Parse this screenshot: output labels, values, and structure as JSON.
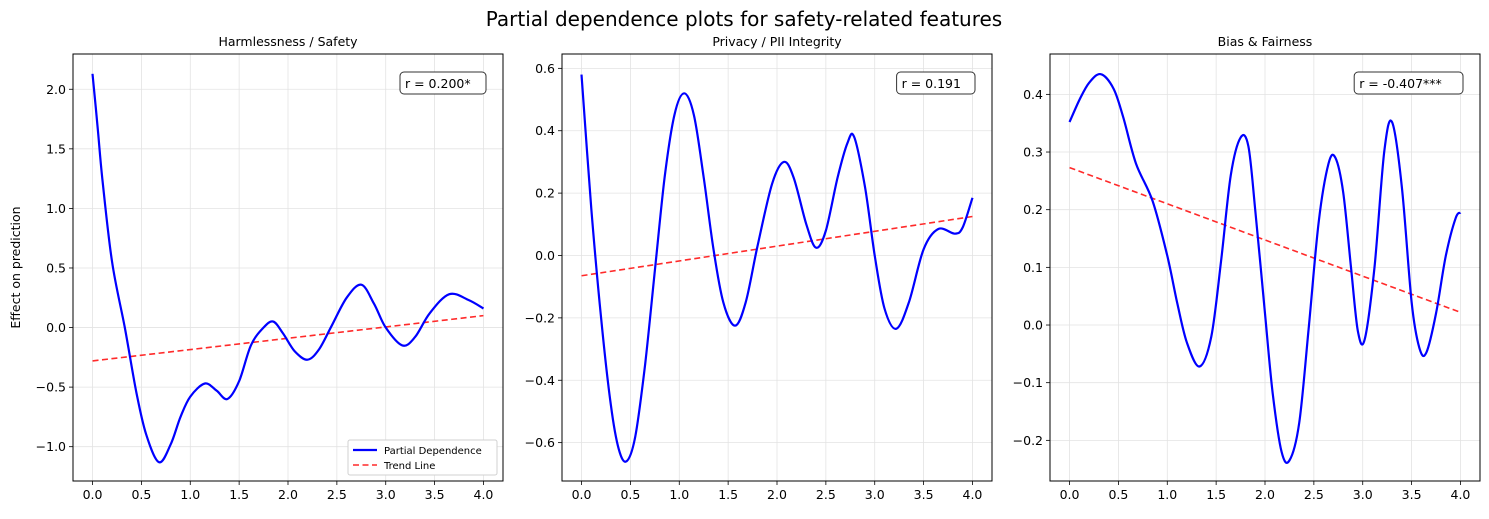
{
  "suptitle": "Partial dependence plots for safety-related features",
  "colors": {
    "pd": "#0000ff",
    "trend": "#ff2a2a",
    "grid": "#e3e3e3"
  },
  "legend": {
    "pd_label": "Partial Dependence",
    "trend_label": "Trend Line",
    "placement": "lower-right"
  },
  "chart_data": [
    {
      "type": "line",
      "title": "Harmlessness / Safety",
      "ylabel": "Effect on prediction",
      "xlabel": "",
      "annotation": "r = 0.200*",
      "xlim": [
        -0.2,
        4.2
      ],
      "ylim": [
        -1.288,
        2.296
      ],
      "xticks": [
        "0.0",
        "0.5",
        "1.0",
        "1.5",
        "2.0",
        "2.5",
        "3.0",
        "3.5",
        "4.0"
      ],
      "yticks": [
        "−1.0",
        "−0.5",
        "0.0",
        "0.5",
        "1.0",
        "1.5",
        "2.0"
      ],
      "ytick_values": [
        -1.0,
        -0.5,
        0,
        0.5,
        1.0,
        1.5,
        2.0
      ],
      "show_legend": true,
      "grid": true,
      "series": [
        {
          "name": "Partial Dependence",
          "x": [
            0,
            0.05,
            0.1,
            0.2,
            0.33,
            0.45,
            0.55,
            0.68,
            0.8,
            0.9,
            1.0,
            1.15,
            1.27,
            1.38,
            1.5,
            1.62,
            1.75,
            1.85,
            1.95,
            2.07,
            2.2,
            2.32,
            2.45,
            2.6,
            2.75,
            2.88,
            3.0,
            3.17,
            3.3,
            3.45,
            3.65,
            3.85,
            4.0
          ],
          "y": [
            2.13,
            1.7,
            1.25,
            0.55,
            0.0,
            -0.55,
            -0.9,
            -1.13,
            -0.98,
            -0.75,
            -0.58,
            -0.47,
            -0.53,
            -0.6,
            -0.45,
            -0.15,
            0.0,
            0.05,
            -0.05,
            -0.2,
            -0.27,
            -0.18,
            0.02,
            0.25,
            0.36,
            0.2,
            0.0,
            -0.15,
            -0.08,
            0.12,
            0.28,
            0.23,
            0.16
          ]
        },
        {
          "name": "Trend Line",
          "x": [
            0,
            4
          ],
          "y": [
            -0.28,
            0.1
          ]
        }
      ]
    },
    {
      "type": "line",
      "title": "Privacy / PII Integrity",
      "ylabel": "",
      "xlabel": "",
      "annotation": "r = 0.191",
      "xlim": [
        -0.2,
        4.2
      ],
      "ylim": [
        -0.723,
        0.646
      ],
      "xticks": [
        "0.0",
        "0.5",
        "1.0",
        "1.5",
        "2.0",
        "2.5",
        "3.0",
        "3.5",
        "4.0"
      ],
      "yticks": [
        "−0.6",
        "−0.4",
        "−0.2",
        "0.0",
        "0.2",
        "0.4",
        "0.6"
      ],
      "ytick_values": [
        -0.6,
        -0.4,
        -0.2,
        0,
        0.2,
        0.4,
        0.6
      ],
      "show_legend": false,
      "grid": true,
      "series": [
        {
          "name": "Partial Dependence",
          "x": [
            0,
            0.1,
            0.2,
            0.3,
            0.38,
            0.46,
            0.55,
            0.65,
            0.75,
            0.85,
            0.95,
            1.05,
            1.15,
            1.25,
            1.35,
            1.45,
            1.57,
            1.68,
            1.8,
            1.95,
            2.07,
            2.17,
            2.3,
            2.4,
            2.5,
            2.62,
            2.72,
            2.79,
            2.9,
            3.0,
            3.1,
            3.22,
            3.35,
            3.5,
            3.65,
            3.82,
            3.9,
            4.0
          ],
          "y": [
            0.58,
            0.15,
            -0.2,
            -0.48,
            -0.62,
            -0.66,
            -0.58,
            -0.35,
            -0.05,
            0.25,
            0.45,
            0.52,
            0.45,
            0.25,
            0.02,
            -0.15,
            -0.225,
            -0.15,
            0.03,
            0.23,
            0.3,
            0.25,
            0.1,
            0.025,
            0.08,
            0.25,
            0.36,
            0.38,
            0.22,
            0.0,
            -0.17,
            -0.235,
            -0.15,
            0.02,
            0.085,
            0.07,
            0.09,
            0.185
          ]
        },
        {
          "name": "Trend Line",
          "x": [
            0,
            4
          ],
          "y": [
            -0.065,
            0.125
          ]
        }
      ]
    },
    {
      "type": "line",
      "title": "Bias & Fairness",
      "ylabel": "",
      "xlabel": "",
      "annotation": "r = -0.407***",
      "xlim": [
        -0.2,
        4.2
      ],
      "ylim": [
        -0.2705,
        0.47
      ],
      "xticks": [
        "0.0",
        "0.5",
        "1.0",
        "1.5",
        "2.0",
        "2.5",
        "3.0",
        "3.5",
        "4.0"
      ],
      "yticks": [
        "−0.2",
        "−0.1",
        "0.0",
        "0.1",
        "0.2",
        "0.3",
        "0.4"
      ],
      "ytick_values": [
        -0.2,
        -0.1,
        0,
        0.1,
        0.2,
        0.3,
        0.4
      ],
      "show_legend": false,
      "grid": true,
      "series": [
        {
          "name": "Partial Dependence",
          "x": [
            0,
            0.1,
            0.2,
            0.32,
            0.45,
            0.55,
            0.68,
            0.85,
            1.0,
            1.1,
            1.2,
            1.33,
            1.45,
            1.55,
            1.65,
            1.75,
            1.83,
            1.9,
            2.0,
            2.08,
            2.17,
            2.25,
            2.35,
            2.45,
            2.55,
            2.65,
            2.72,
            2.8,
            2.88,
            2.95,
            3.02,
            3.12,
            3.22,
            3.3,
            3.4,
            3.5,
            3.58,
            3.65,
            3.75,
            3.85,
            3.95,
            4.0
          ],
          "y": [
            0.352,
            0.39,
            0.42,
            0.435,
            0.41,
            0.36,
            0.28,
            0.215,
            0.12,
            0.04,
            -0.03,
            -0.072,
            -0.02,
            0.11,
            0.26,
            0.325,
            0.31,
            0.2,
            0.02,
            -0.12,
            -0.22,
            -0.235,
            -0.17,
            0.0,
            0.18,
            0.28,
            0.29,
            0.23,
            0.1,
            -0.01,
            -0.025,
            0.1,
            0.3,
            0.352,
            0.24,
            0.04,
            -0.04,
            -0.048,
            0.02,
            0.12,
            0.185,
            0.195
          ]
        },
        {
          "name": "Trend Line",
          "x": [
            0,
            4
          ],
          "y": [
            0.273,
            0.022
          ]
        }
      ]
    }
  ]
}
